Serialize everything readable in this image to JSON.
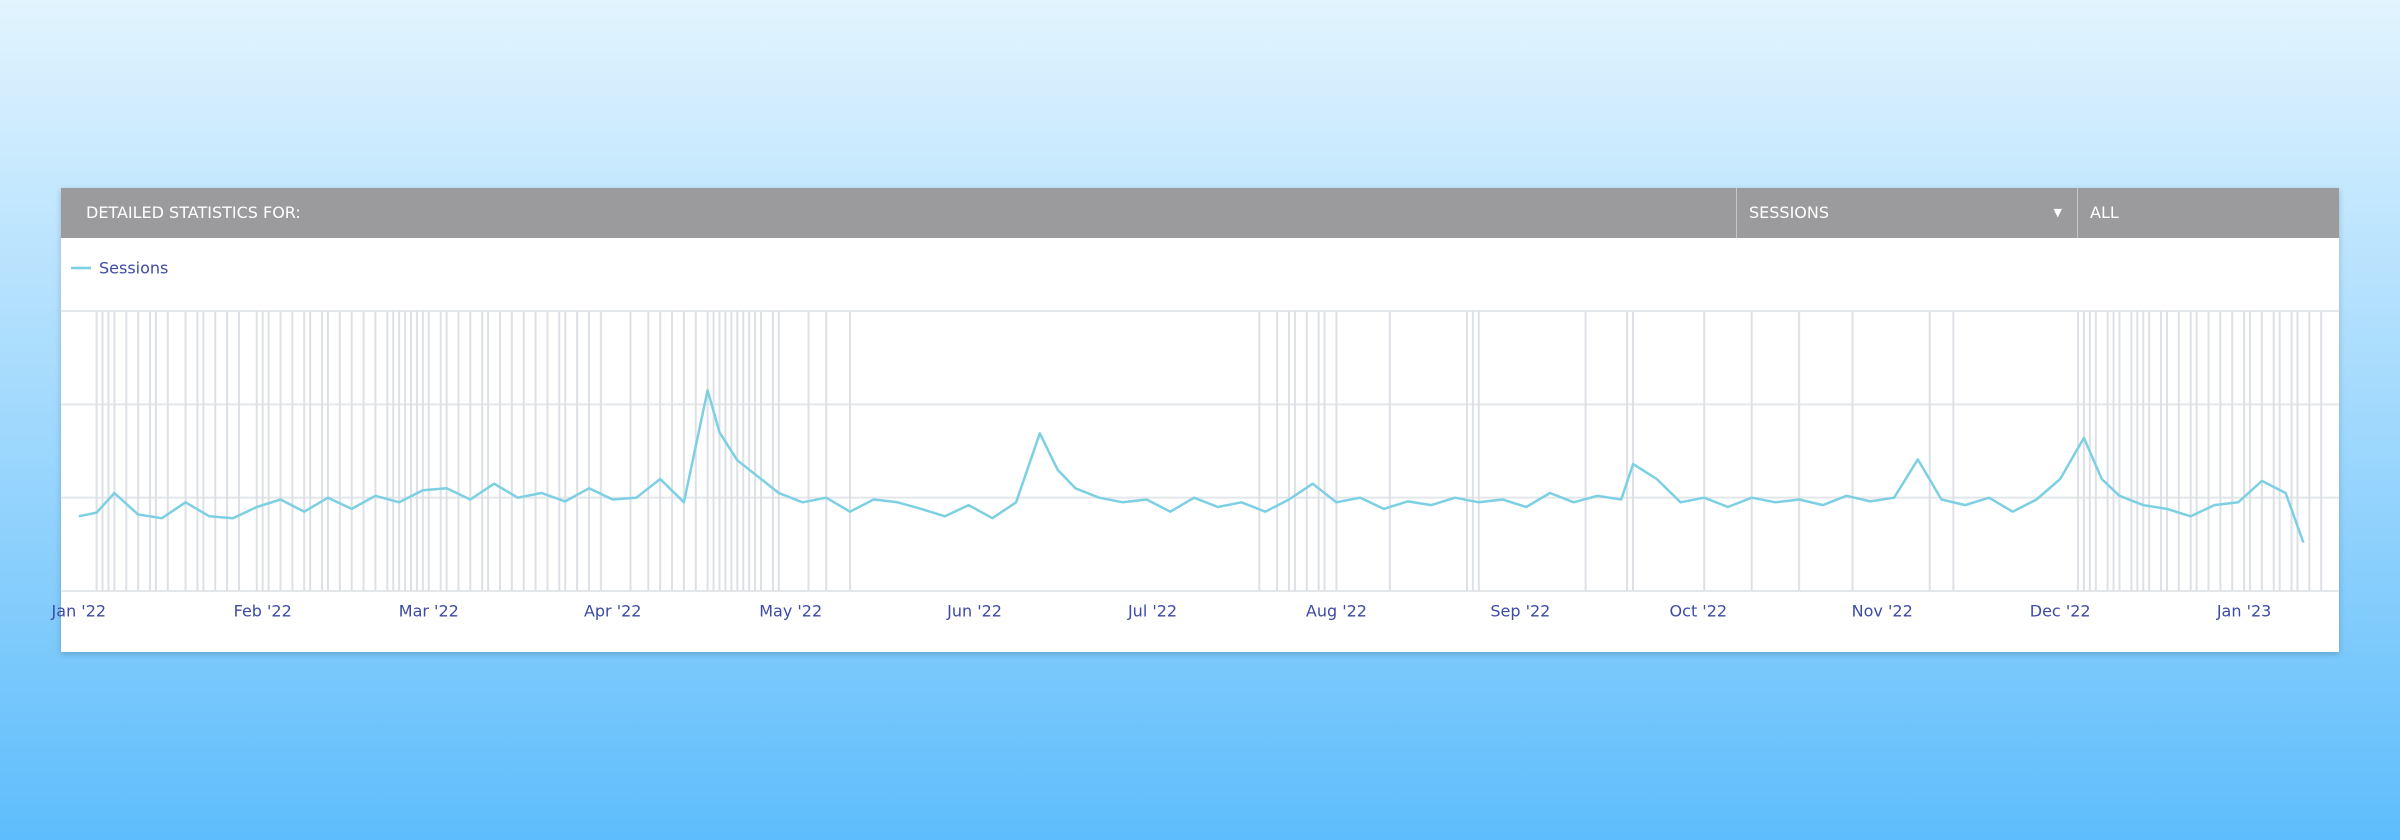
{
  "header": {
    "title": "DETAILED STATISTICS FOR:",
    "metric": "SESSIONS",
    "filter": "ALL"
  },
  "chart_data": {
    "type": "line",
    "series": [
      {
        "name": "Sessions",
        "color": "#7dd0e3",
        "x": [
          0,
          3,
          6,
          10,
          14,
          18,
          22,
          26,
          30,
          34,
          38,
          42,
          46,
          50,
          54,
          58,
          62,
          66,
          70,
          74,
          78,
          82,
          86,
          90,
          94,
          98,
          102,
          106,
          108,
          111,
          114,
          118,
          122,
          126,
          130,
          134,
          138,
          142,
          146,
          150,
          154,
          158,
          162,
          165,
          168,
          172,
          176,
          180,
          184,
          188,
          192,
          196,
          200,
          204,
          208,
          212,
          216,
          220,
          224,
          228,
          232,
          236,
          240,
          244,
          248,
          252,
          256,
          260,
          262,
          266,
          270,
          274,
          278,
          282,
          286,
          290,
          294,
          298,
          302,
          306,
          310,
          314,
          318,
          322,
          326,
          330,
          334,
          338,
          341,
          344,
          348,
          352,
          356,
          360,
          364,
          368,
          372,
          375
        ],
        "values": [
          80,
          84,
          105,
          82,
          78,
          95,
          80,
          78,
          90,
          98,
          85,
          100,
          88,
          102,
          95,
          108,
          110,
          98,
          115,
          100,
          105,
          96,
          110,
          98,
          100,
          120,
          95,
          215,
          170,
          140,
          125,
          105,
          95,
          100,
          85,
          98,
          95,
          88,
          80,
          92,
          78,
          95,
          169,
          130,
          110,
          100,
          95,
          98,
          85,
          100,
          90,
          95,
          85,
          98,
          115,
          95,
          100,
          88,
          96,
          92,
          100,
          95,
          98,
          90,
          105,
          95,
          102,
          98,
          136,
          120,
          95,
          100,
          90,
          100,
          95,
          98,
          92,
          102,
          96,
          100,
          141,
          98,
          92,
          100,
          85,
          98,
          120,
          164,
          120,
          102,
          92,
          88,
          80,
          92,
          95,
          118,
          105,
          52
        ]
      }
    ],
    "markers": [
      3,
      4,
      5,
      6,
      8,
      10,
      12,
      13,
      15,
      18,
      20,
      21,
      23,
      25,
      27,
      30,
      31,
      32,
      34,
      36,
      38,
      39,
      41,
      42,
      44,
      46,
      48,
      50,
      52,
      53,
      54,
      55,
      56,
      57,
      58,
      59,
      61,
      62,
      64,
      66,
      68,
      69,
      71,
      73,
      75,
      77,
      79,
      81,
      82,
      84,
      86,
      88,
      93,
      96,
      98,
      100,
      102,
      104,
      106,
      107,
      108,
      109,
      110,
      111,
      112,
      113,
      114,
      115,
      117,
      118,
      123,
      126,
      130,
      199,
      202,
      204,
      205,
      207,
      209,
      210,
      212,
      221,
      234,
      235,
      236,
      254,
      261,
      262,
      274,
      282,
      290,
      299,
      312,
      316,
      337,
      338,
      339,
      340,
      342,
      343,
      344,
      346,
      347,
      348,
      349,
      351,
      352,
      354,
      356,
      357,
      359,
      361,
      363,
      365,
      366,
      368,
      370,
      371,
      373,
      374,
      376,
      378
    ],
    "marker_color": "#dde1e6",
    "xlim": [
      -3,
      381
    ],
    "xticks": [
      {
        "value": 0,
        "label": "Jan '22"
      },
      {
        "value": 31,
        "label": "Feb '22"
      },
      {
        "value": 59,
        "label": "Mar '22"
      },
      {
        "value": 90,
        "label": "Apr '22"
      },
      {
        "value": 120,
        "label": "May '22"
      },
      {
        "value": 151,
        "label": "Jun '22"
      },
      {
        "value": 181,
        "label": "Jul '22"
      },
      {
        "value": 212,
        "label": "Aug '22"
      },
      {
        "value": 243,
        "label": "Sep '22"
      },
      {
        "value": 273,
        "label": "Oct '22"
      },
      {
        "value": 304,
        "label": "Nov '22"
      },
      {
        "value": 334,
        "label": "Dec '22"
      },
      {
        "value": 365,
        "label": "Jan '23"
      }
    ],
    "ylim": [
      0,
      300
    ],
    "ygrid": [
      0,
      100,
      200,
      300
    ],
    "grid": true
  }
}
